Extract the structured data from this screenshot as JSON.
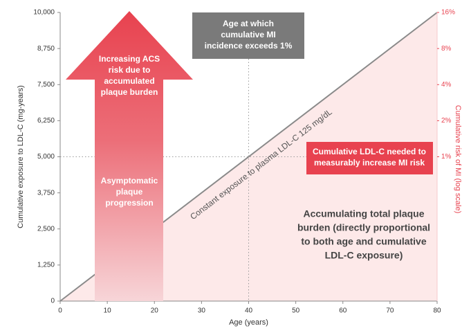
{
  "chart_data": {
    "type": "line",
    "xlabel": "Age (years)",
    "ylabel": "Cumulative exposure to LDL-C (mg-years)",
    "y2label": "Cumulative risk of MI (log scale)",
    "xlim": [
      0,
      80
    ],
    "xticks": [
      0,
      10,
      20,
      30,
      40,
      50,
      60,
      70,
      80
    ],
    "ylim": [
      0,
      10000
    ],
    "yticks": [
      0,
      {
        "value": 1250,
        "label": "1,250"
      },
      {
        "value": 2500,
        "label": "2,500"
      },
      {
        "value": 3750,
        "label": "3,750"
      },
      {
        "value": 5000,
        "label": "5,000"
      },
      {
        "value": 6250,
        "label": "6,250"
      },
      {
        "value": 7500,
        "label": "7,500"
      },
      {
        "value": 8750,
        "label": "8,750"
      },
      {
        "value": 10000,
        "label": "10,000"
      }
    ],
    "y2lim": [
      0.0625,
      16
    ],
    "y2log": true,
    "y2ticks": [
      {
        "value": 1,
        "label": "1%"
      },
      {
        "value": 2,
        "label": "2%"
      },
      {
        "value": 4,
        "label": "4%"
      },
      {
        "value": 8,
        "label": "8%"
      },
      {
        "value": 16,
        "label": "16%"
      }
    ],
    "series": [
      {
        "name": "Constant exposure to plasma LDL-C 125 mg/dL",
        "color": "#8a8a8a",
        "fill": "#fde9e9",
        "x": [
          0,
          80
        ],
        "values": [
          0,
          10000
        ]
      }
    ],
    "reference_lines": {
      "x": 40,
      "y": 5000
    },
    "annotations": {
      "arrow_top": [
        "Increasing ACS",
        "risk due to",
        "accumulated",
        "plaque burden"
      ],
      "arrow_bottom": [
        "Asymptomatic",
        "plaque",
        "progression"
      ],
      "age_box": [
        "Age at which",
        "cumulative MI",
        "incidence exceeds 1%"
      ],
      "ldl_box": [
        "Cumulative LDL-C needed to",
        "measurably increase MI risk"
      ],
      "plaque": [
        "Accumulating total plaque",
        "burden (directly proportional",
        "to both age and cumulative",
        "LDL-C exposure)"
      ]
    }
  }
}
